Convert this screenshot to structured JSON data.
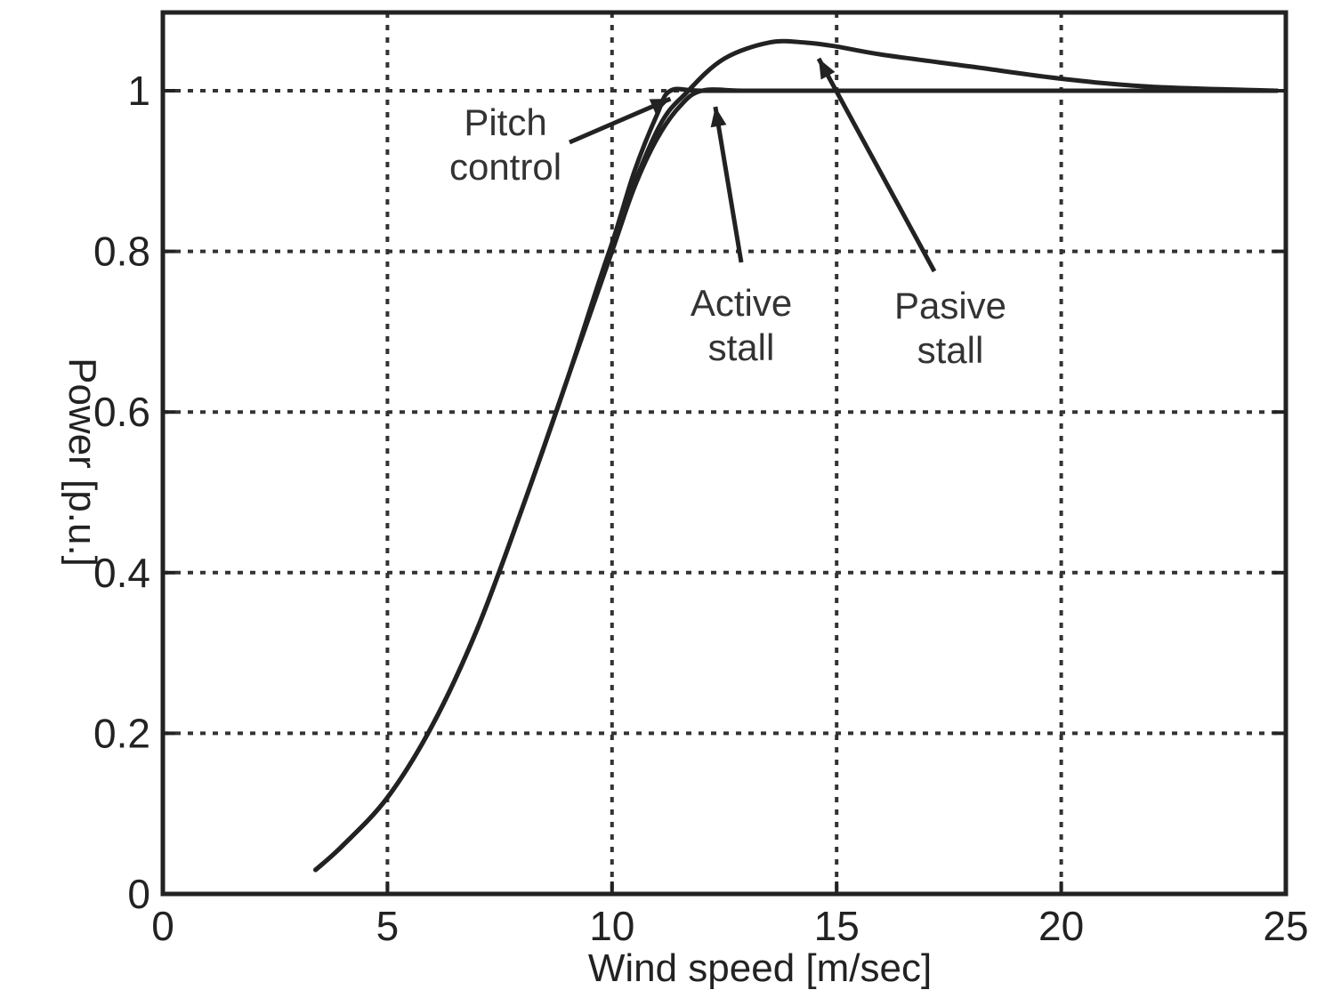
{
  "chart_data": {
    "type": "line",
    "title": "",
    "xlabel": "Wind speed [m/sec]",
    "ylabel": "Power [p.u.]",
    "xlim": [
      0,
      25
    ],
    "ylim": [
      0,
      1.1
    ],
    "xticks": [
      0,
      5,
      10,
      15,
      20,
      25
    ],
    "yticks": [
      0,
      0.2,
      0.4,
      0.6,
      0.8,
      1
    ],
    "xtick_labels": [
      "0",
      "5",
      "10",
      "15",
      "20",
      "25"
    ],
    "ytick_labels": [
      "0",
      "0.2",
      "0.4",
      "0.6",
      "0.8",
      "1"
    ],
    "grid": true,
    "series": [
      {
        "id": "pitch",
        "x": [
          3.4,
          4.0,
          5.0,
          6.0,
          7.0,
          8.0,
          9.0,
          10.0,
          10.5,
          11.0,
          11.3,
          12,
          14,
          16,
          18,
          20,
          22,
          24.8
        ],
        "y": [
          0.03,
          0.06,
          0.12,
          0.21,
          0.33,
          0.48,
          0.64,
          0.81,
          0.9,
          0.97,
          1.0,
          1.0,
          1.0,
          1.0,
          1.0,
          1.0,
          1.0,
          1.0
        ]
      },
      {
        "id": "active-stall",
        "x": [
          3.4,
          4.0,
          5.0,
          6.0,
          7.0,
          8.0,
          9.0,
          10.0,
          10.5,
          11.0,
          11.5,
          12.0,
          13,
          15,
          17,
          20,
          22,
          24.8
        ],
        "y": [
          0.03,
          0.06,
          0.12,
          0.21,
          0.33,
          0.48,
          0.64,
          0.8,
          0.88,
          0.94,
          0.98,
          1.0,
          1.0,
          1.0,
          1.0,
          1.0,
          1.0,
          1.0
        ]
      },
      {
        "id": "passive-stall",
        "x": [
          3.4,
          4.0,
          5.0,
          6.0,
          7.0,
          8.0,
          9.0,
          10.0,
          11.0,
          11.7,
          12.5,
          13.5,
          14.3,
          15.0,
          16.0,
          18.0,
          20.0,
          22.0,
          24.8
        ],
        "y": [
          0.03,
          0.06,
          0.12,
          0.21,
          0.33,
          0.48,
          0.64,
          0.81,
          0.95,
          1.0,
          1.04,
          1.06,
          1.06,
          1.055,
          1.045,
          1.03,
          1.015,
          1.005,
          1.0
        ]
      }
    ],
    "annotations": [
      {
        "lines": [
          "Pitch",
          "control"
        ],
        "target_series": "pitch",
        "target_x": 11.3,
        "target_y": 0.99
      },
      {
        "lines": [
          "Active",
          "stall"
        ],
        "target_series": "active-stall",
        "target_x": 12.3,
        "target_y": 0.98
      },
      {
        "lines": [
          "Pasive",
          "stall"
        ],
        "target_series": "passive-stall",
        "target_x": 14.6,
        "target_y": 1.04
      }
    ]
  }
}
